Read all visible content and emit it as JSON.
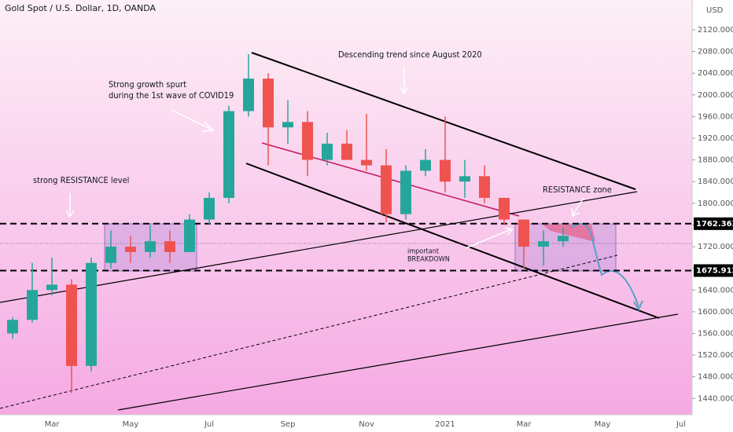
{
  "chart_data": {
    "type": "candlestick",
    "title": "Gold Spot / U.S. Dollar, 1D, OANDA",
    "currency": "USD",
    "categories": [
      null,
      null,
      "Mar",
      null,
      null,
      null,
      "May",
      null,
      null,
      null,
      "Jul",
      null,
      null,
      null,
      "Sep",
      null,
      null,
      null,
      "Nov",
      null,
      null,
      null,
      "2021",
      null,
      null,
      null,
      "Mar",
      null,
      null,
      null,
      "May",
      null,
      null,
      null,
      "Jul"
    ],
    "open": [
      1560,
      1585,
      1640,
      1650,
      1500,
      1690,
      1720,
      1710,
      1730,
      1710,
      1770,
      1810,
      1970,
      2030,
      1940,
      1950,
      1880,
      1910,
      1880,
      1870,
      1780,
      1860,
      1880,
      1840,
      1850,
      1810,
      1770,
      1720,
      1730,
      null,
      null,
      null,
      null,
      null,
      null
    ],
    "high": [
      1590,
      1690,
      1700,
      1660,
      1700,
      1750,
      1740,
      1760,
      1750,
      1780,
      1820,
      1980,
      2075,
      2040,
      1990,
      1970,
      1930,
      1935,
      1965,
      1900,
      1870,
      1900,
      1960,
      1880,
      1870,
      1810,
      1770,
      1750,
      1755,
      null,
      null,
      null,
      null,
      null,
      null
    ],
    "low": [
      1550,
      1580,
      1630,
      1450,
      1490,
      1680,
      1690,
      1700,
      1690,
      1710,
      1760,
      1800,
      1960,
      1870,
      1910,
      1850,
      1870,
      1880,
      1860,
      1765,
      1770,
      1850,
      1820,
      1810,
      1800,
      1760,
      1680,
      1685,
      1720,
      null,
      null,
      null,
      null,
      null,
      null
    ],
    "close": [
      1585,
      1640,
      1650,
      1500,
      1690,
      1720,
      1710,
      1730,
      1710,
      1770,
      1810,
      1970,
      2030,
      1940,
      1950,
      1880,
      1910,
      1880,
      1870,
      1780,
      1860,
      1880,
      1840,
      1850,
      1810,
      1770,
      1720,
      1730,
      1740,
      null,
      null,
      null,
      null,
      null,
      null
    ],
    "up_color": "#26a69a",
    "down_color": "#ef5350",
    "ylim": [
      1410,
      2175
    ],
    "yticks": [
      {
        "value": 1440,
        "label": "1440.000"
      },
      {
        "value": 1480,
        "label": "1480.000"
      },
      {
        "value": 1520,
        "label": "1520.000"
      },
      {
        "value": 1560,
        "label": "1560.000"
      },
      {
        "value": 1600,
        "label": "1600.000"
      },
      {
        "value": 1640,
        "label": "1640.000"
      },
      {
        "value": 1680,
        "label": "1680.000"
      },
      {
        "value": 1720,
        "label": "1720.000"
      },
      {
        "value": 1760,
        "label": "1760.000"
      },
      {
        "value": 1800,
        "label": "1800.000"
      },
      {
        "value": 1840,
        "label": "1840.000"
      },
      {
        "value": 1880,
        "label": "1880.000"
      },
      {
        "value": 1920,
        "label": "1920.000"
      },
      {
        "value": 1960,
        "label": "1960.000"
      },
      {
        "value": 2000,
        "label": "2000.000"
      },
      {
        "value": 2040,
        "label": "2040.000"
      },
      {
        "value": 2080,
        "label": "2080.000"
      },
      {
        "value": 2120,
        "label": "2120.000"
      }
    ],
    "levels": [
      1762.363,
      1675.912
    ],
    "annotations": {
      "trend": "Descending trend since August 2020",
      "growth": [
        "Strong growth spurt",
        "during the 1st wave of COVID19"
      ],
      "resistance_level": "strong RESISTANCE level",
      "resistance_zone": "RESISTANCE zone",
      "breakdown": [
        "important",
        "BREAKDOWN"
      ]
    }
  }
}
